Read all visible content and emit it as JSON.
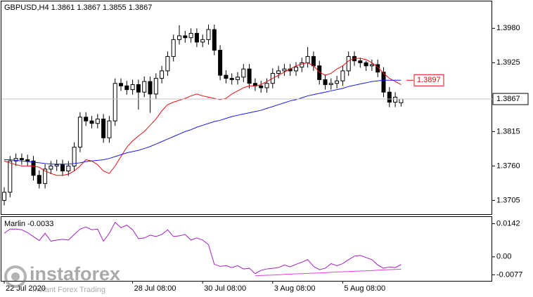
{
  "chart_data": {
    "type": "candlestick",
    "title": "GBPUSD,H4  1.3861 1.3867 1.3855 1.3867",
    "categories": [
      "22 Jul 2020",
      null,
      null,
      null,
      null,
      null,
      null,
      null,
      null,
      null,
      null,
      null,
      null,
      null,
      null,
      null,
      null,
      null,
      null,
      null,
      null,
      null,
      "28 Jul 08:00",
      null,
      null,
      null,
      null,
      null,
      null,
      null,
      null,
      null,
      null,
      null,
      "30 Jul 08:00",
      null,
      null,
      null,
      null,
      null,
      null,
      null,
      null,
      null,
      null,
      null,
      "3 Aug 08:00",
      null,
      null,
      null,
      null,
      null,
      null,
      null,
      null,
      null,
      null,
      null,
      "5 Aug 08:00",
      null,
      null,
      null,
      null,
      null,
      null,
      null,
      null,
      null,
      null
    ],
    "open": [
      1.3705,
      1.3718,
      1.3768,
      1.3772,
      1.377,
      1.3768,
      1.3745,
      1.3732,
      1.3755,
      1.376,
      1.3762,
      1.3752,
      1.376,
      1.379,
      1.3838,
      1.3832,
      1.3828,
      1.3835,
      1.3805,
      1.3832,
      1.3892,
      1.3888,
      1.3882,
      1.389,
      1.3878,
      1.3895,
      1.3875,
      1.39,
      1.3912,
      1.3935,
      1.3962,
      1.3968,
      1.3965,
      1.3972,
      1.3958,
      1.3962,
      1.3978,
      1.3945,
      1.3905,
      1.39,
      1.3898,
      1.3902,
      1.3915,
      1.3892,
      1.3888,
      1.3885,
      1.3892,
      1.3908,
      1.3912,
      1.3915,
      1.3912,
      1.3918,
      1.3925,
      1.3935,
      1.392,
      1.3898,
      1.389,
      1.3892,
      1.3896,
      1.3912,
      1.3935,
      1.3928,
      1.3925,
      1.392,
      1.3922,
      1.391,
      1.3878,
      1.3862,
      1.3861
    ],
    "high": [
      1.3726,
      1.3776,
      1.378,
      1.378,
      1.3778,
      1.3776,
      1.3753,
      1.3763,
      1.3768,
      1.377,
      1.377,
      1.3768,
      1.3798,
      1.3846,
      1.3846,
      1.384,
      1.3843,
      1.3843,
      1.384,
      1.39,
      1.39,
      1.3896,
      1.3898,
      1.3898,
      1.3903,
      1.3903,
      1.3908,
      1.392,
      1.3943,
      1.397,
      1.3985,
      1.3976,
      1.398,
      1.398,
      1.397,
      1.3986,
      1.3986,
      1.3953,
      1.3913,
      1.3908,
      1.391,
      1.3923,
      1.3923,
      1.39,
      1.3896,
      1.39,
      1.3916,
      1.392,
      1.3923,
      1.3923,
      1.3926,
      1.3933,
      1.395,
      1.3943,
      1.3928,
      1.3906,
      1.39,
      1.3904,
      1.392,
      1.3943,
      1.3943,
      1.3933,
      1.3928,
      1.393,
      1.393,
      1.3918,
      1.3886,
      1.3878,
      1.3867
    ],
    "low": [
      1.3697,
      1.371,
      1.376,
      1.3762,
      1.376,
      1.3737,
      1.3724,
      1.3724,
      1.3747,
      1.3752,
      1.3744,
      1.3744,
      1.3752,
      1.3782,
      1.3824,
      1.382,
      1.382,
      1.3797,
      1.3797,
      1.3824,
      1.388,
      1.3874,
      1.3874,
      1.385,
      1.387,
      1.3845,
      1.3867,
      1.3892,
      1.3904,
      1.3927,
      1.3954,
      1.3957,
      1.3957,
      1.395,
      1.395,
      1.3954,
      1.3937,
      1.3897,
      1.3892,
      1.389,
      1.389,
      1.3894,
      1.3884,
      1.388,
      1.3877,
      1.3877,
      1.3884,
      1.39,
      1.3904,
      1.3904,
      1.3904,
      1.391,
      1.3917,
      1.3912,
      1.389,
      1.3882,
      1.3882,
      1.3884,
      1.3888,
      1.3904,
      1.392,
      1.3917,
      1.3912,
      1.3912,
      1.3902,
      1.387,
      1.3854,
      1.3854,
      1.3855
    ],
    "close": [
      1.3718,
      1.3768,
      1.3772,
      1.377,
      1.3768,
      1.3745,
      1.3732,
      1.3755,
      1.376,
      1.3762,
      1.3752,
      1.376,
      1.379,
      1.3838,
      1.3832,
      1.3828,
      1.3835,
      1.3805,
      1.3832,
      1.3892,
      1.3888,
      1.3882,
      1.389,
      1.3878,
      1.3895,
      1.3875,
      1.39,
      1.3912,
      1.3935,
      1.3962,
      1.3968,
      1.3965,
      1.3972,
      1.3958,
      1.3962,
      1.3978,
      1.3945,
      1.3905,
      1.39,
      1.3898,
      1.3902,
      1.3915,
      1.3892,
      1.3888,
      1.3885,
      1.3892,
      1.3908,
      1.3912,
      1.3915,
      1.3912,
      1.3918,
      1.3925,
      1.3935,
      1.392,
      1.3898,
      1.389,
      1.3892,
      1.3896,
      1.3912,
      1.3935,
      1.3928,
      1.3925,
      1.392,
      1.3922,
      1.391,
      1.3878,
      1.3862,
      1.387,
      1.3867
    ],
    "series": [
      {
        "color": "#e01010",
        "values": [
          1.3768,
          1.3765,
          1.3762,
          1.376,
          1.376,
          1.376,
          1.3758,
          1.3752,
          1.3748,
          1.3745,
          1.3745,
          1.3747,
          1.3752,
          1.376,
          1.377,
          1.3768,
          1.3762,
          1.3752,
          1.3748,
          1.376,
          1.3775,
          1.379,
          1.38,
          1.3808,
          1.3815,
          1.3825,
          1.3835,
          1.3848,
          1.3858,
          1.3862,
          1.3865,
          1.3868,
          1.3872,
          1.3875,
          1.3872,
          1.387,
          1.3868,
          1.3866,
          1.3868,
          1.3875,
          1.388,
          1.3885,
          1.3888,
          1.3888,
          1.389,
          1.3895,
          1.39,
          1.3905,
          1.391,
          1.3915,
          1.392,
          1.3923,
          1.3925,
          1.392,
          1.391,
          1.3905,
          1.3908,
          1.3915,
          1.392,
          1.3928,
          1.3932,
          1.3932,
          1.393,
          1.3925,
          1.3918,
          1.3908,
          1.39,
          1.3895,
          1.389
        ]
      },
      {
        "color": "#1a1ae0",
        "values": [
          1.377,
          1.377,
          1.3769,
          1.3768,
          1.3767,
          1.3766,
          1.3765,
          1.3764,
          1.3763,
          1.3763,
          1.3763,
          1.3763,
          1.3764,
          1.3765,
          1.3767,
          1.3768,
          1.3769,
          1.377,
          1.3772,
          1.3775,
          1.3778,
          1.3781,
          1.3783,
          1.3785,
          1.3788,
          1.3791,
          1.3795,
          1.3799,
          1.3803,
          1.3807,
          1.3811,
          1.3815,
          1.3818,
          1.3822,
          1.3825,
          1.3828,
          1.3831,
          1.3833,
          1.3836,
          1.3839,
          1.3841,
          1.3843,
          1.3845,
          1.3847,
          1.3849,
          1.3852,
          1.3855,
          1.3858,
          1.3861,
          1.3864,
          1.3866,
          1.3869,
          1.3872,
          1.3874,
          1.3876,
          1.3878,
          1.388,
          1.3882,
          1.3884,
          1.3887,
          1.3889,
          1.3891,
          1.3893,
          1.3895,
          1.3896,
          1.3897,
          1.3897,
          1.3897,
          1.3897
        ]
      }
    ],
    "ylim": [
      1.3683,
      1.4023
    ],
    "yticks": [
      {
        "value": 1.398,
        "label": "1.3980"
      },
      1.3925,
      1.3815,
      {
        "value": 1.376,
        "label": "1.3760"
      },
      1.3705
    ],
    "current_price": 1.3867,
    "ma_label": 1.3897,
    "indicator": {
      "type": "line",
      "label": "Marlin -0.0033",
      "series": [
        {
          "color": "#a020c0",
          "values": [
            0.0101,
            0.0119,
            0.0119,
            0.0116,
            0.0104,
            0.0087,
            0.007,
            0.0101,
            0.0067,
            0.0072,
            0.0075,
            0.0072,
            0.0096,
            0.0119,
            0.0128,
            0.0116,
            0.0119,
            0.0067,
            0.0101,
            0.0148,
            0.0125,
            0.0136,
            0.0116,
            0.0078,
            0.0081,
            0.0093,
            0.0087,
            0.0096,
            0.0116,
            0.0087,
            0.009,
            0.0096,
            0.0072,
            0.0081,
            0.0072,
            0.0052,
            -0.0032,
            -0.0041,
            -0.0038,
            -0.0046,
            -0.0038,
            -0.0052,
            -0.0049,
            -0.0072,
            -0.0058,
            -0.0052,
            -0.0049,
            -0.0046,
            -0.0035,
            -0.0043,
            -0.0032,
            -0.0023,
            -0.0012,
            -0.0041,
            -0.0055,
            -0.0049,
            -0.0029,
            -0.0038,
            -0.0029,
            -0.0012,
            0.0003,
            0.0006,
            -0.0003,
            -0.0012,
            -0.0035,
            -0.0049,
            -0.0043,
            -0.0046,
            -0.0033
          ]
        },
        {
          "color": "#e040e0",
          "values": [
            null,
            null,
            null,
            null,
            null,
            null,
            null,
            null,
            null,
            null,
            null,
            null,
            null,
            null,
            null,
            null,
            null,
            null,
            null,
            null,
            null,
            null,
            null,
            null,
            null,
            null,
            null,
            null,
            null,
            null,
            null,
            null,
            null,
            null,
            null,
            null,
            null,
            null,
            null,
            null,
            null,
            null,
            null,
            -0.0081,
            -0.008,
            -0.0079,
            -0.0078,
            -0.0077,
            -0.0075,
            -0.0074,
            -0.0073,
            -0.0072,
            -0.0071,
            -0.007,
            -0.0069,
            -0.0068,
            -0.0066,
            -0.0065,
            -0.0064,
            -0.0063,
            -0.0062,
            -0.0061,
            -0.006,
            -0.0059,
            -0.0057,
            -0.0056,
            -0.0055,
            -0.0054,
            -0.0053
          ]
        }
      ],
      "ylim": [
        -0.0103,
        0.0168
      ],
      "yticks": [
        0.0142,
        {
          "value": 0,
          "label": "0.00"
        },
        -0.0077
      ]
    },
    "watermark": {
      "brand": "instaforex",
      "tagline": "Instant Forex Trading"
    }
  }
}
